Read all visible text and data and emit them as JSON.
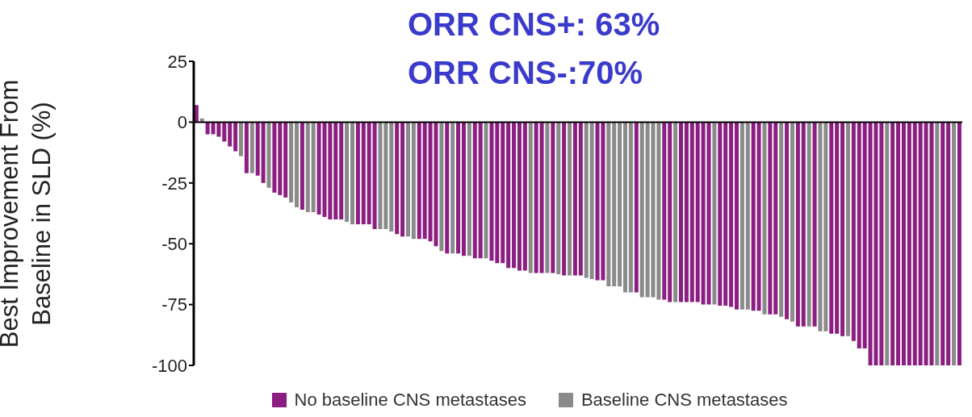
{
  "chart_data": {
    "type": "bar",
    "stacked": true,
    "ylabel": "Best Improvement From Baseline in SLD (%)",
    "annotations": [
      "ORR CNS+: 63%",
      "ORR CNS-:70%"
    ],
    "ylim": [
      -100,
      25
    ],
    "yticks": [
      25,
      0,
      -25,
      -50,
      -75,
      -100
    ],
    "grid": false,
    "legend": "bottom",
    "ref_lines": [
      {
        "axis": "y",
        "value": 0,
        "color": "#000000"
      }
    ],
    "categories": [
      null,
      null,
      null,
      null,
      null,
      null,
      null,
      null,
      null,
      null,
      null,
      null,
      null,
      null,
      null,
      null,
      null,
      null,
      null,
      null,
      null,
      null,
      null,
      null,
      null,
      null,
      null,
      null,
      null,
      null,
      null,
      null,
      null,
      null,
      null,
      null,
      null,
      null,
      null,
      null,
      null,
      null,
      null,
      null,
      null,
      null,
      null,
      null,
      null,
      null,
      null,
      null,
      null,
      null,
      null,
      null,
      null,
      null,
      null,
      null,
      null,
      null,
      null,
      null,
      null,
      null,
      null,
      null,
      null,
      null,
      null,
      null,
      null,
      null,
      null,
      null,
      null,
      null,
      null,
      null,
      null,
      null,
      null,
      null,
      null,
      null,
      null,
      null,
      null,
      null,
      null,
      null,
      null,
      null,
      null,
      null,
      null,
      null,
      null,
      null,
      null,
      null,
      null,
      null,
      null,
      null,
      null,
      null,
      null,
      null,
      null,
      null,
      null,
      null,
      null,
      null,
      null,
      null,
      null,
      null,
      null,
      null,
      null,
      null,
      null,
      null,
      null,
      null,
      null,
      null,
      null,
      null,
      null,
      null,
      null,
      null,
      null,
      null
    ],
    "series": [
      {
        "name": "No baseline CNS metastases",
        "color": "#8b1e80",
        "values": [
          7,
          null,
          -5,
          -5,
          -6,
          -8,
          -10,
          -12,
          null,
          -21,
          null,
          -22,
          -25,
          null,
          -29,
          -30,
          -31,
          null,
          null,
          -36,
          null,
          null,
          -38,
          -39,
          -40,
          -40,
          -40,
          null,
          null,
          -42,
          -42,
          -42,
          -44,
          null,
          null,
          null,
          -46,
          -47,
          null,
          null,
          -48,
          -48,
          -49,
          -51,
          null,
          -54,
          null,
          -54,
          -55,
          null,
          -56,
          -56,
          null,
          -57,
          -58,
          -58,
          -60,
          -60,
          -61,
          -61,
          null,
          -62,
          -62,
          null,
          -62,
          null,
          -63,
          null,
          -63,
          -63,
          null,
          null,
          -65,
          -65,
          null,
          null,
          null,
          null,
          null,
          -70,
          null,
          null,
          null,
          null,
          -73,
          -74,
          null,
          -74,
          -74,
          -74,
          -74,
          -75,
          -75,
          null,
          -75.5,
          -75.5,
          -76,
          -77,
          null,
          null,
          -77.5,
          -77.5,
          null,
          -79,
          -79,
          null,
          -81,
          null,
          -84,
          -84,
          null,
          -84,
          null,
          null,
          -87,
          -87,
          -88,
          null,
          -90,
          -93,
          -93,
          -100,
          -100,
          -100,
          null,
          -100,
          -100,
          -100,
          -100,
          -100,
          -100,
          -100,
          -100,
          null,
          -100,
          -100,
          null,
          -100
        ]
      },
      {
        "name": "Baseline CNS metastases",
        "color": "#8a8a8a",
        "values": [
          null,
          1.5,
          null,
          null,
          null,
          null,
          null,
          null,
          -14,
          null,
          -21,
          null,
          null,
          -27,
          null,
          null,
          null,
          -33,
          -35,
          null,
          -37,
          -37,
          null,
          null,
          null,
          null,
          null,
          -41,
          -42,
          null,
          null,
          null,
          null,
          -44,
          -44,
          -45,
          null,
          null,
          -47,
          -48,
          null,
          null,
          null,
          null,
          -53,
          null,
          -54,
          null,
          null,
          -55,
          null,
          null,
          -56,
          null,
          null,
          null,
          null,
          null,
          null,
          null,
          -62,
          null,
          null,
          -62,
          null,
          -62.5,
          null,
          -63,
          null,
          null,
          -64,
          -64.5,
          null,
          null,
          -67.5,
          -67.5,
          -67.5,
          -70,
          -70,
          null,
          -72,
          -72,
          -72,
          -73,
          null,
          null,
          -74,
          null,
          null,
          null,
          null,
          null,
          null,
          -75,
          null,
          null,
          null,
          null,
          -77,
          -77,
          null,
          null,
          -79,
          null,
          null,
          -80,
          null,
          -82,
          null,
          null,
          -84,
          null,
          -86,
          -86,
          null,
          null,
          null,
          -88,
          null,
          null,
          null,
          null,
          null,
          null,
          -100,
          null,
          null,
          null,
          null,
          null,
          null,
          null,
          null,
          -100,
          null,
          null,
          -100,
          null
        ]
      }
    ]
  }
}
